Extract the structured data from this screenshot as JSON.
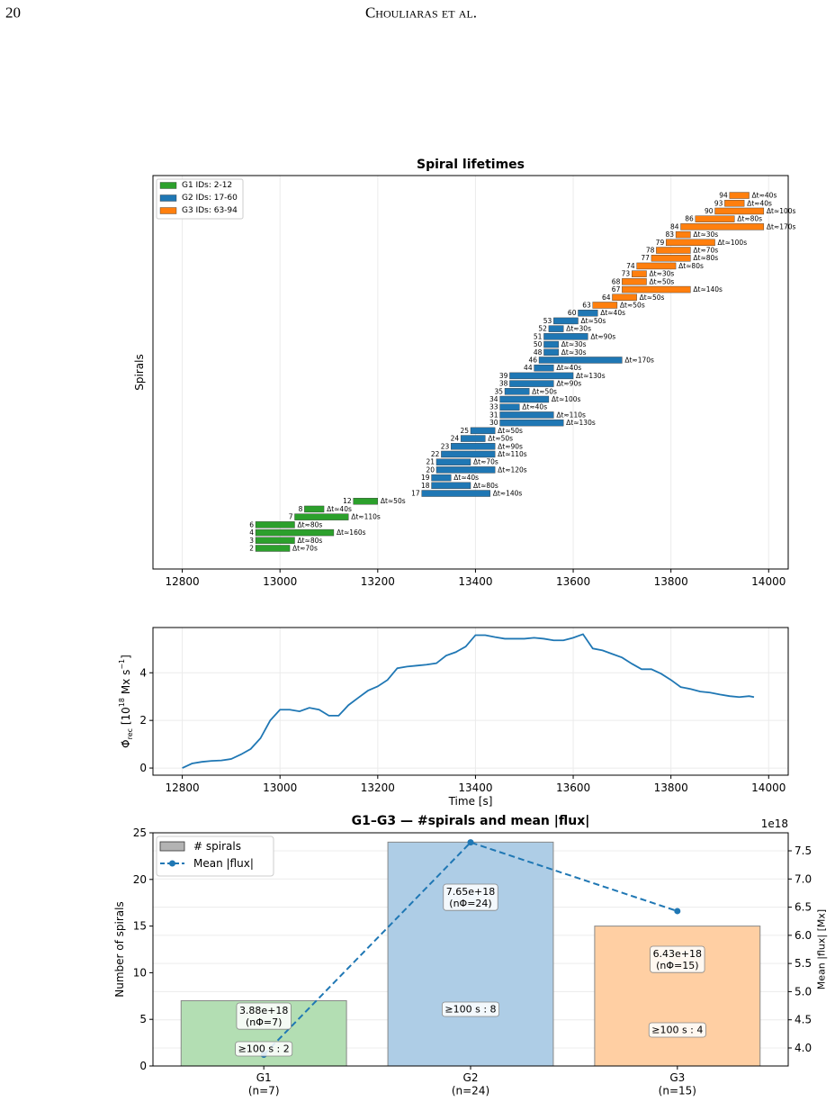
{
  "page_header": {
    "number": "20",
    "running_title": "Chouliaras et al."
  },
  "chart_data": [
    {
      "type": "gantt",
      "title": "Spiral lifetimes",
      "ylabel": "Spirals",
      "xlim": [
        12740,
        14040
      ],
      "xticks": [
        12800,
        13000,
        13200,
        13400,
        13600,
        13800,
        14000
      ],
      "grid": true,
      "legend": "upper left",
      "series": [
        {
          "name": "G1 IDs: 2-12",
          "color": "#2ca02c",
          "categories": [
            "2",
            "3",
            "4",
            "6",
            "7",
            "8",
            "12"
          ],
          "start": [
            12950,
            12950,
            12950,
            12950,
            13030,
            13050,
            13150
          ],
          "values": [
            70,
            80,
            160,
            80,
            110,
            40,
            50
          ],
          "value_labels": [
            "Δt≈70s",
            "Δt≈80s",
            "Δt≈160s",
            "Δt≈80s",
            "Δt≈110s",
            "Δt≈40s",
            "Δt≈50s"
          ]
        },
        {
          "name": "G2 IDs: 17-60",
          "color": "#1f77b4",
          "categories": [
            "17",
            "18",
            "19",
            "20",
            "21",
            "22",
            "23",
            "24",
            "25",
            "30",
            "31",
            "33",
            "34",
            "35",
            "38",
            "39",
            "44",
            "46",
            "48",
            "50",
            "51",
            "52",
            "53",
            "60"
          ],
          "start": [
            13290,
            13310,
            13310,
            13320,
            13320,
            13330,
            13350,
            13370,
            13390,
            13450,
            13450,
            13450,
            13450,
            13460,
            13470,
            13470,
            13520,
            13530,
            13540,
            13540,
            13540,
            13550,
            13560,
            13610
          ],
          "values": [
            140,
            80,
            40,
            120,
            70,
            110,
            90,
            50,
            50,
            130,
            110,
            40,
            100,
            50,
            90,
            130,
            40,
            170,
            30,
            30,
            90,
            30,
            50,
            40
          ],
          "value_labels": [
            "Δt≈140s",
            "Δt≈80s",
            "Δt≈40s",
            "Δt≈120s",
            "Δt≈70s",
            "Δt≈110s",
            "Δt≈90s",
            "Δt≈50s",
            "Δt≈50s",
            "Δt≈130s",
            "Δt≈110s",
            "Δt≈40s",
            "Δt≈100s",
            "Δt≈50s",
            "Δt≈90s",
            "Δt≈130s",
            "Δt≈40s",
            "Δt≈170s",
            "Δt≈30s",
            "Δt≈30s",
            "Δt≈90s",
            "Δt≈30s",
            "Δt≈50s",
            "Δt≈40s"
          ]
        },
        {
          "name": "G3 IDs: 63-94",
          "color": "#ff7f0e",
          "categories": [
            "63",
            "64",
            "67",
            "68",
            "73",
            "74",
            "77",
            "78",
            "79",
            "83",
            "84",
            "86",
            "90",
            "93",
            "94"
          ],
          "start": [
            13640,
            13680,
            13700,
            13700,
            13720,
            13730,
            13760,
            13770,
            13790,
            13810,
            13820,
            13850,
            13890,
            13910,
            13920
          ],
          "values": [
            50,
            50,
            140,
            50,
            30,
            80,
            80,
            70,
            100,
            30,
            170,
            80,
            100,
            40,
            40
          ],
          "value_labels": [
            "Δt≈50s",
            "Δt≈50s",
            "Δt≈140s",
            "Δt≈50s",
            "Δt≈30s",
            "Δt≈80s",
            "Δt≈80s",
            "Δt≈70s",
            "Δt≈100s",
            "Δt≈30s",
            "Δt≈170s",
            "Δt≈80s",
            "Δt≈100s",
            "Δt≈40s",
            "Δt≈40s"
          ]
        }
      ]
    },
    {
      "type": "line",
      "xlabel": "Time [s]",
      "ylabel_parts": [
        "Φ̇",
        "rec",
        " [10",
        "18",
        " Mx s",
        "−1",
        "]"
      ],
      "color": "#1f77b4",
      "x": [
        12800,
        12820,
        12840,
        12860,
        12880,
        12900,
        12920,
        12940,
        12960,
        12980,
        13000,
        13020,
        13040,
        13060,
        13080,
        13100,
        13120,
        13140,
        13160,
        13180,
        13200,
        13220,
        13240,
        13260,
        13280,
        13300,
        13320,
        13340,
        13360,
        13380,
        13400,
        13420,
        13440,
        13460,
        13480,
        13500,
        13520,
        13540,
        13560,
        13580,
        13600,
        13620,
        13640,
        13660,
        13680,
        13700,
        13720,
        13740,
        13760,
        13780,
        13800,
        13820,
        13840,
        13860,
        13880,
        13900,
        13920,
        13940,
        13960,
        13970
      ],
      "values": [
        0,
        0.19,
        0.26,
        0.3,
        0.32,
        0.38,
        0.57,
        0.8,
        1.25,
        2.0,
        2.45,
        2.45,
        2.38,
        2.53,
        2.45,
        2.2,
        2.2,
        2.64,
        2.95,
        3.25,
        3.43,
        3.7,
        4.19,
        4.26,
        4.3,
        4.34,
        4.4,
        4.72,
        4.87,
        5.1,
        5.58,
        5.58,
        5.5,
        5.43,
        5.43,
        5.43,
        5.47,
        5.43,
        5.36,
        5.36,
        5.47,
        5.62,
        5.02,
        4.94,
        4.79,
        4.64,
        4.38,
        4.15,
        4.15,
        3.96,
        3.7,
        3.4,
        3.32,
        3.21,
        3.17,
        3.09,
        3.02,
        2.98,
        3.02,
        2.98
      ],
      "xlim": [
        12740,
        14040
      ],
      "xticks": [
        12800,
        13000,
        13200,
        13400,
        13600,
        13800,
        14000
      ],
      "ylim": [
        -0.3,
        5.9
      ],
      "yticks": [
        0,
        2,
        4
      ],
      "grid": true
    },
    {
      "type": "bar_line",
      "title": "G1–G3 — #spirals and mean |flux|",
      "categories": [
        "G1\n(n=7)",
        "G2\n(n=24)",
        "G3\n(n=15)"
      ],
      "ylabel": "Number of spirals",
      "y2label": "Mean |flux| [Mx]",
      "y2_offset_label": "1e18",
      "ylim": [
        0,
        25
      ],
      "yticks": [
        0,
        5,
        10,
        15,
        20,
        25
      ],
      "y2lim": [
        3.68,
        7.82
      ],
      "y2ticks": [
        {
          "value": 4,
          "label": "4.0"
        },
        4.5,
        {
          "value": 5,
          "label": "5.0"
        },
        5.5,
        {
          "value": 6,
          "label": "6.0"
        },
        6.5,
        {
          "value": 7,
          "label": "7.0"
        },
        7.5
      ],
      "grid": true,
      "legend": "upper left",
      "series": [
        {
          "name": "# spirals",
          "type": "bar",
          "color": "#b3b3b3",
          "colors": [
            "#b3deb3",
            "#aecde6",
            "#ffcfa3"
          ],
          "values": [
            7,
            24,
            15
          ]
        },
        {
          "name": "Mean |flux|",
          "type": "line",
          "axis": "y2",
          "color": "#1f77b4",
          "values": [
            3.88,
            7.65,
            6.43
          ],
          "value_labels": [
            "3.88e+18\n(nΦ=7)",
            "7.65e+18\n(nΦ=24)",
            "6.43e+18\n(nΦ=15)"
          ]
        }
      ],
      "annotations": [
        "≥100 s : 2",
        "≥100 s : 8",
        "≥100 s : 4"
      ]
    }
  ]
}
